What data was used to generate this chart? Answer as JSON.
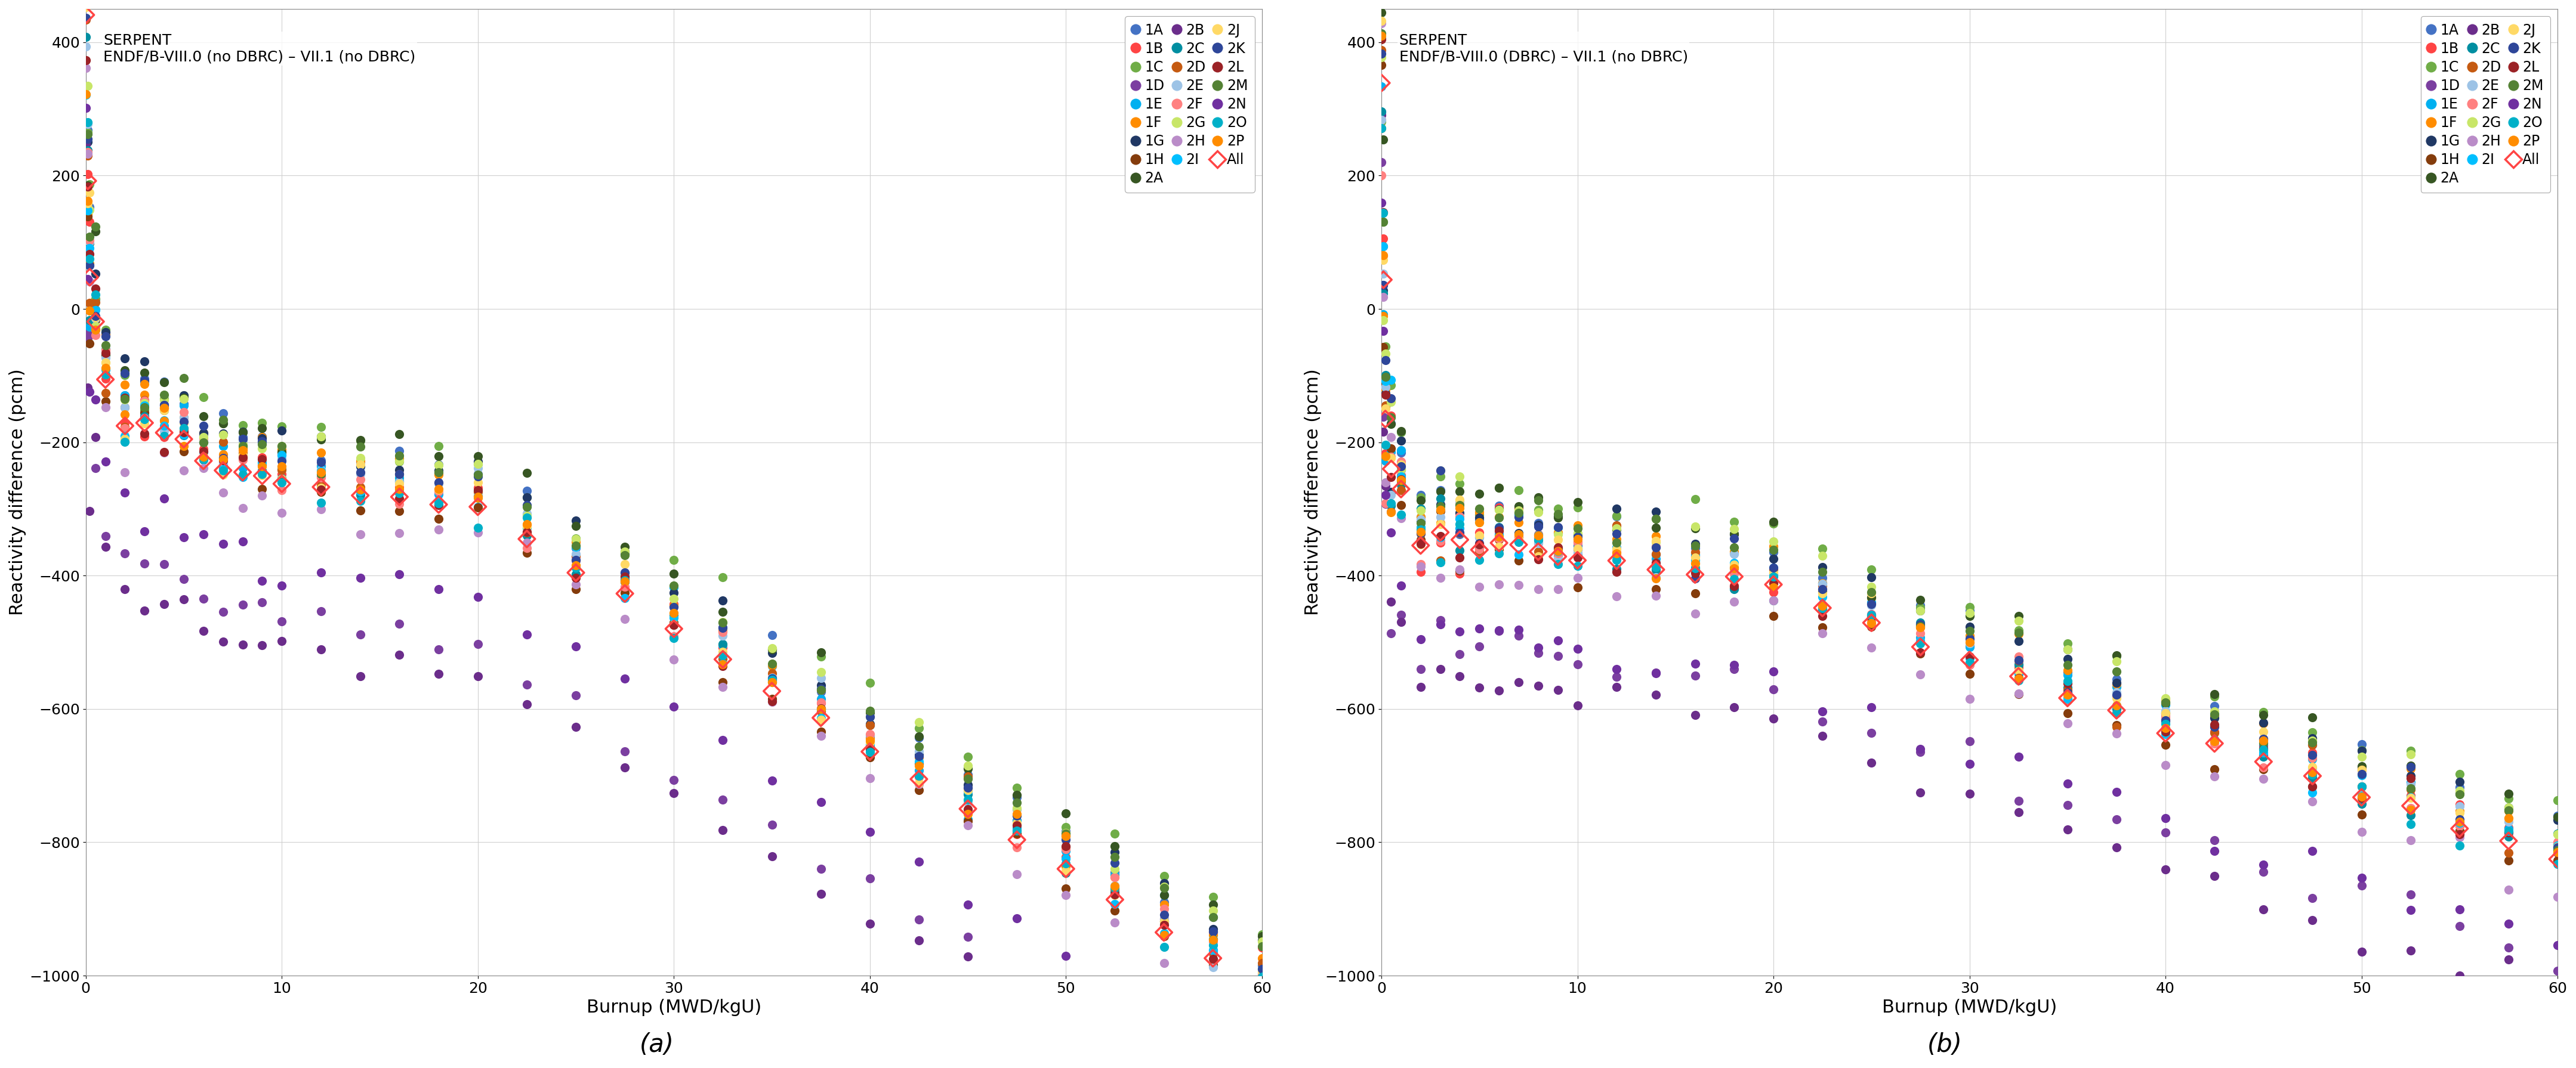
{
  "subplot_a_title": "SERPENT\nENDF/B-VIII.0 (no DBRC) – VII.1 (no DBRC)",
  "subplot_b_title": "SERPENT\nENDF/B-VIII.0 (DBRC) – VII.1 (no DBRC)",
  "xlabel": "Burnup (MWD/kgU)",
  "ylabel": "Reactivity difference (pcm)",
  "label_a": "(a)",
  "label_b": "(b)",
  "xlim": [
    0,
    60
  ],
  "ylim": [
    -1000,
    450
  ],
  "yticks": [
    -1000,
    -800,
    -600,
    -400,
    -200,
    0,
    200,
    400
  ],
  "xticks": [
    0,
    10,
    20,
    30,
    40,
    50,
    60
  ],
  "series_colors": {
    "1A": "#4472C4",
    "1B": "#FF0000",
    "1C": "#70AD47",
    "1D": "#7030A0",
    "1E": "#00B0F0",
    "1F": "#FF8C00",
    "1G": "#203864",
    "1H": "#843C0C",
    "2A": "#375623",
    "2B": "#7030A0",
    "2C": "#00B0F0",
    "2D": "#FF8C00",
    "2E": "#9DC3E6",
    "2F": "#FF8080",
    "2G": "#C6E0B4",
    "2H": "#C9B1D9",
    "2I": "#00B0F0",
    "2J": "#FFD966",
    "2K": "#203864",
    "2L": "#843C0C",
    "2M": "#548235",
    "2N": "#6a0dad",
    "2O": "#00B0F0",
    "2P": "#FF8C00"
  },
  "burnup_steps": [
    0.0,
    0.1,
    0.2,
    0.5,
    1.0,
    2.0,
    3.0,
    4.0,
    5.0,
    6.0,
    7.0,
    8.0,
    9.0,
    10.0,
    12.0,
    14.0,
    16.0,
    18.0,
    20.0,
    22.5,
    25.0,
    27.5,
    30.0,
    32.5,
    35.0,
    37.5,
    40.0,
    42.5,
    45.0,
    47.5,
    50.0,
    52.5,
    55.0,
    57.5,
    60.0
  ]
}
